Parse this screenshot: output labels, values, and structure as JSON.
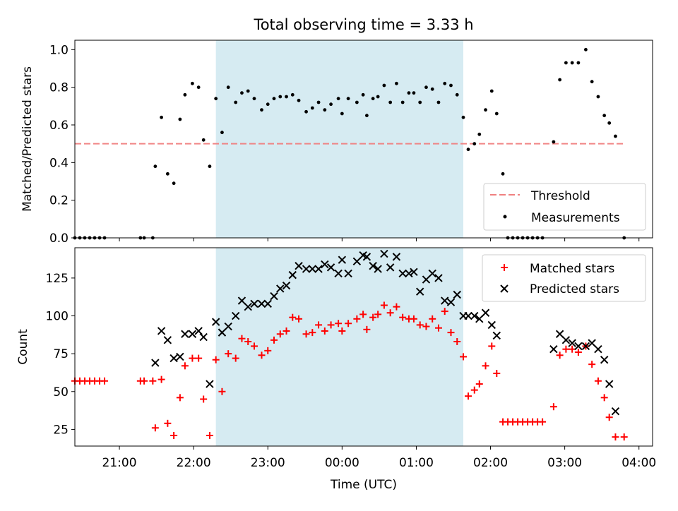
{
  "chart_data": [
    {
      "type": "scatter",
      "title": "Total observing time = 3.33 h",
      "ylabel": "Matched/Predicted stars",
      "xlabel": "",
      "xlim": [
        "20:24",
        "04:11"
      ],
      "ylim": [
        0,
        1.05
      ],
      "yticks": [
        "0.0",
        "0.2",
        "0.4",
        "0.6",
        "0.8",
        "1.0"
      ],
      "yticks_values": [
        0,
        0.2,
        0.4,
        0.6,
        0.8,
        1.0
      ],
      "observing_window": [
        "22:18",
        "01:38"
      ],
      "grid": false,
      "legend_position": "bottom-right",
      "threshold": {
        "name": "Threshold",
        "value": 0.5,
        "x_range": [
          "20:24",
          "03:48"
        ],
        "color": "#f08080"
      },
      "series": [
        {
          "name": "Measurements",
          "color": "#000000",
          "points": [
            [
              "20:24",
              0
            ],
            [
              "20:28",
              0
            ],
            [
              "20:32",
              0
            ],
            [
              "20:36",
              0
            ],
            [
              "20:40",
              0
            ],
            [
              "20:44",
              0
            ],
            [
              "20:48",
              0
            ],
            [
              "21:17",
              0
            ],
            [
              "21:20",
              0
            ],
            [
              "21:27",
              0
            ],
            [
              "21:29",
              0.38
            ],
            [
              "21:34",
              0.64
            ],
            [
              "21:39",
              0.34
            ],
            [
              "21:44",
              0.29
            ],
            [
              "21:49",
              0.63
            ],
            [
              "21:53",
              0.76
            ],
            [
              "21:59",
              0.82
            ],
            [
              "22:04",
              0.8
            ],
            [
              "22:08",
              0.52
            ],
            [
              "22:13",
              0.38
            ],
            [
              "22:18",
              0.74
            ],
            [
              "22:23",
              0.56
            ],
            [
              "22:28",
              0.8
            ],
            [
              "22:34",
              0.72
            ],
            [
              "22:39",
              0.77
            ],
            [
              "22:44",
              0.78
            ],
            [
              "22:49",
              0.74
            ],
            [
              "22:55",
              0.68
            ],
            [
              "23:00",
              0.71
            ],
            [
              "23:05",
              0.74
            ],
            [
              "23:10",
              0.75
            ],
            [
              "23:15",
              0.75
            ],
            [
              "23:20",
              0.76
            ],
            [
              "23:25",
              0.73
            ],
            [
              "23:31",
              0.67
            ],
            [
              "23:36",
              0.69
            ],
            [
              "23:41",
              0.72
            ],
            [
              "23:46",
              0.68
            ],
            [
              "23:51",
              0.71
            ],
            [
              "23:57",
              0.74
            ],
            [
              "00:00",
              0.66
            ],
            [
              "00:05",
              0.74
            ],
            [
              "00:12",
              0.72
            ],
            [
              "00:17",
              0.76
            ],
            [
              "00:20",
              0.65
            ],
            [
              "00:25",
              0.74
            ],
            [
              "00:29",
              0.75
            ],
            [
              "00:34",
              0.81
            ],
            [
              "00:39",
              0.72
            ],
            [
              "00:44",
              0.82
            ],
            [
              "00:49",
              0.72
            ],
            [
              "00:54",
              0.77
            ],
            [
              "00:58",
              0.77
            ],
            [
              "01:03",
              0.72
            ],
            [
              "01:08",
              0.8
            ],
            [
              "01:13",
              0.79
            ],
            [
              "01:18",
              0.72
            ],
            [
              "01:23",
              0.82
            ],
            [
              "01:28",
              0.81
            ],
            [
              "01:33",
              0.76
            ],
            [
              "01:38",
              0.64
            ],
            [
              "01:42",
              0.47
            ],
            [
              "01:47",
              0.5
            ],
            [
              "01:51",
              0.55
            ],
            [
              "01:56",
              0.68
            ],
            [
              "02:01",
              0.78
            ],
            [
              "02:05",
              0.66
            ],
            [
              "02:10",
              0.34
            ],
            [
              "02:14",
              0
            ],
            [
              "02:18",
              0
            ],
            [
              "02:22",
              0
            ],
            [
              "02:26",
              0
            ],
            [
              "02:30",
              0
            ],
            [
              "02:34",
              0
            ],
            [
              "02:38",
              0
            ],
            [
              "02:42",
              0
            ],
            [
              "02:51",
              0.51
            ],
            [
              "02:56",
              0.84
            ],
            [
              "03:01",
              0.93
            ],
            [
              "03:06",
              0.93
            ],
            [
              "03:11",
              0.93
            ],
            [
              "03:17",
              1.0
            ],
            [
              "03:22",
              0.83
            ],
            [
              "03:27",
              0.75
            ],
            [
              "03:32",
              0.65
            ],
            [
              "03:36",
              0.61
            ],
            [
              "03:41",
              0.54
            ],
            [
              "03:48",
              0
            ]
          ]
        }
      ]
    },
    {
      "type": "scatter",
      "title": "",
      "ylabel": "Count",
      "xlabel": "Time (UTC)",
      "xlim": [
        "20:24",
        "04:11"
      ],
      "ylim": [
        14,
        145
      ],
      "yticks": [
        "25",
        "50",
        "75",
        "100",
        "125"
      ],
      "yticks_values": [
        25,
        50,
        75,
        100,
        125
      ],
      "xticks": [
        "21:00",
        "22:00",
        "23:00",
        "00:00",
        "01:00",
        "02:00",
        "03:00",
        "04:00"
      ],
      "observing_window": [
        "22:18",
        "01:38"
      ],
      "grid": false,
      "legend_position": "top-right",
      "series": [
        {
          "name": "Matched stars",
          "marker": "plus",
          "color": "#ff0000",
          "points": [
            [
              "20:24",
              57
            ],
            [
              "20:28",
              57
            ],
            [
              "20:32",
              57
            ],
            [
              "20:36",
              57
            ],
            [
              "20:40",
              57
            ],
            [
              "20:44",
              57
            ],
            [
              "20:48",
              57
            ],
            [
              "21:17",
              57
            ],
            [
              "21:20",
              57
            ],
            [
              "21:27",
              57
            ],
            [
              "21:29",
              26
            ],
            [
              "21:34",
              58
            ],
            [
              "21:39",
              29
            ],
            [
              "21:44",
              21
            ],
            [
              "21:49",
              46
            ],
            [
              "21:53",
              67
            ],
            [
              "21:59",
              72
            ],
            [
              "22:04",
              72
            ],
            [
              "22:08",
              45
            ],
            [
              "22:13",
              21
            ],
            [
              "22:18",
              71
            ],
            [
              "22:23",
              50
            ],
            [
              "22:28",
              75
            ],
            [
              "22:34",
              72
            ],
            [
              "22:39",
              85
            ],
            [
              "22:44",
              83
            ],
            [
              "22:49",
              80
            ],
            [
              "22:55",
              74
            ],
            [
              "23:00",
              77
            ],
            [
              "23:05",
              84
            ],
            [
              "23:10",
              88
            ],
            [
              "23:15",
              90
            ],
            [
              "23:20",
              99
            ],
            [
              "23:25",
              98
            ],
            [
              "23:31",
              88
            ],
            [
              "23:36",
              89
            ],
            [
              "23:41",
              94
            ],
            [
              "23:46",
              90
            ],
            [
              "23:51",
              94
            ],
            [
              "23:57",
              95
            ],
            [
              "00:00",
              90
            ],
            [
              "00:05",
              95
            ],
            [
              "00:12",
              98
            ],
            [
              "00:17",
              101
            ],
            [
              "00:20",
              91
            ],
            [
              "00:25",
              99
            ],
            [
              "00:29",
              101
            ],
            [
              "00:34",
              107
            ],
            [
              "00:39",
              102
            ],
            [
              "00:44",
              106
            ],
            [
              "00:49",
              99
            ],
            [
              "00:54",
              98
            ],
            [
              "00:58",
              98
            ],
            [
              "01:03",
              94
            ],
            [
              "01:08",
              93
            ],
            [
              "01:13",
              98
            ],
            [
              "01:18",
              92
            ],
            [
              "01:23",
              103
            ],
            [
              "01:28",
              89
            ],
            [
              "01:33",
              83
            ],
            [
              "01:38",
              73
            ],
            [
              "01:42",
              47
            ],
            [
              "01:47",
              51
            ],
            [
              "01:51",
              55
            ],
            [
              "01:56",
              67
            ],
            [
              "02:01",
              80
            ],
            [
              "02:05",
              62
            ],
            [
              "02:10",
              30
            ],
            [
              "02:14",
              30
            ],
            [
              "02:18",
              30
            ],
            [
              "02:22",
              30
            ],
            [
              "02:26",
              30
            ],
            [
              "02:30",
              30
            ],
            [
              "02:34",
              30
            ],
            [
              "02:38",
              30
            ],
            [
              "02:42",
              30
            ],
            [
              "02:51",
              40
            ],
            [
              "02:56",
              74
            ],
            [
              "03:01",
              78
            ],
            [
              "03:06",
              78
            ],
            [
              "03:11",
              76
            ],
            [
              "03:17",
              80
            ],
            [
              "03:22",
              68
            ],
            [
              "03:27",
              57
            ],
            [
              "03:32",
              46
            ],
            [
              "03:36",
              33
            ],
            [
              "03:41",
              20
            ],
            [
              "03:48",
              20
            ]
          ]
        },
        {
          "name": "Predicted stars",
          "marker": "x",
          "color": "#000000",
          "points": [
            [
              "21:29",
              69
            ],
            [
              "21:34",
              90
            ],
            [
              "21:39",
              84
            ],
            [
              "21:44",
              72
            ],
            [
              "21:49",
              73
            ],
            [
              "21:53",
              88
            ],
            [
              "21:59",
              88
            ],
            [
              "22:04",
              90
            ],
            [
              "22:08",
              86
            ],
            [
              "22:13",
              55
            ],
            [
              "22:18",
              96
            ],
            [
              "22:23",
              89
            ],
            [
              "22:28",
              93
            ],
            [
              "22:34",
              100
            ],
            [
              "22:39",
              110
            ],
            [
              "22:44",
              106
            ],
            [
              "22:49",
              108
            ],
            [
              "22:55",
              108
            ],
            [
              "23:00",
              108
            ],
            [
              "23:05",
              113
            ],
            [
              "23:10",
              118
            ],
            [
              "23:15",
              120
            ],
            [
              "23:20",
              127
            ],
            [
              "23:25",
              133
            ],
            [
              "23:31",
              131
            ],
            [
              "23:36",
              131
            ],
            [
              "23:41",
              131
            ],
            [
              "23:46",
              134
            ],
            [
              "23:51",
              132
            ],
            [
              "23:57",
              128
            ],
            [
              "00:00",
              137
            ],
            [
              "00:05",
              128
            ],
            [
              "00:12",
              136
            ],
            [
              "00:17",
              140
            ],
            [
              "00:20",
              139
            ],
            [
              "00:25",
              133
            ],
            [
              "00:29",
              131
            ],
            [
              "00:34",
              141
            ],
            [
              "00:39",
              132
            ],
            [
              "00:44",
              139
            ],
            [
              "00:49",
              128
            ],
            [
              "00:54",
              128
            ],
            [
              "00:58",
              129
            ],
            [
              "01:03",
              116
            ],
            [
              "01:08",
              124
            ],
            [
              "01:13",
              128
            ],
            [
              "01:18",
              125
            ],
            [
              "01:23",
              110
            ],
            [
              "01:28",
              109
            ],
            [
              "01:33",
              114
            ],
            [
              "01:38",
              100
            ],
            [
              "01:42",
              100
            ],
            [
              "01:47",
              100
            ],
            [
              "01:51",
              98
            ],
            [
              "01:56",
              102
            ],
            [
              "02:01",
              94
            ],
            [
              "02:05",
              87
            ],
            [
              "02:51",
              78
            ],
            [
              "02:56",
              88
            ],
            [
              "03:01",
              84
            ],
            [
              "03:06",
              82
            ],
            [
              "03:11",
              80
            ],
            [
              "03:17",
              80
            ],
            [
              "03:22",
              82
            ],
            [
              "03:27",
              78
            ],
            [
              "03:32",
              71
            ],
            [
              "03:36",
              55
            ],
            [
              "03:41",
              37
            ]
          ]
        }
      ]
    }
  ]
}
